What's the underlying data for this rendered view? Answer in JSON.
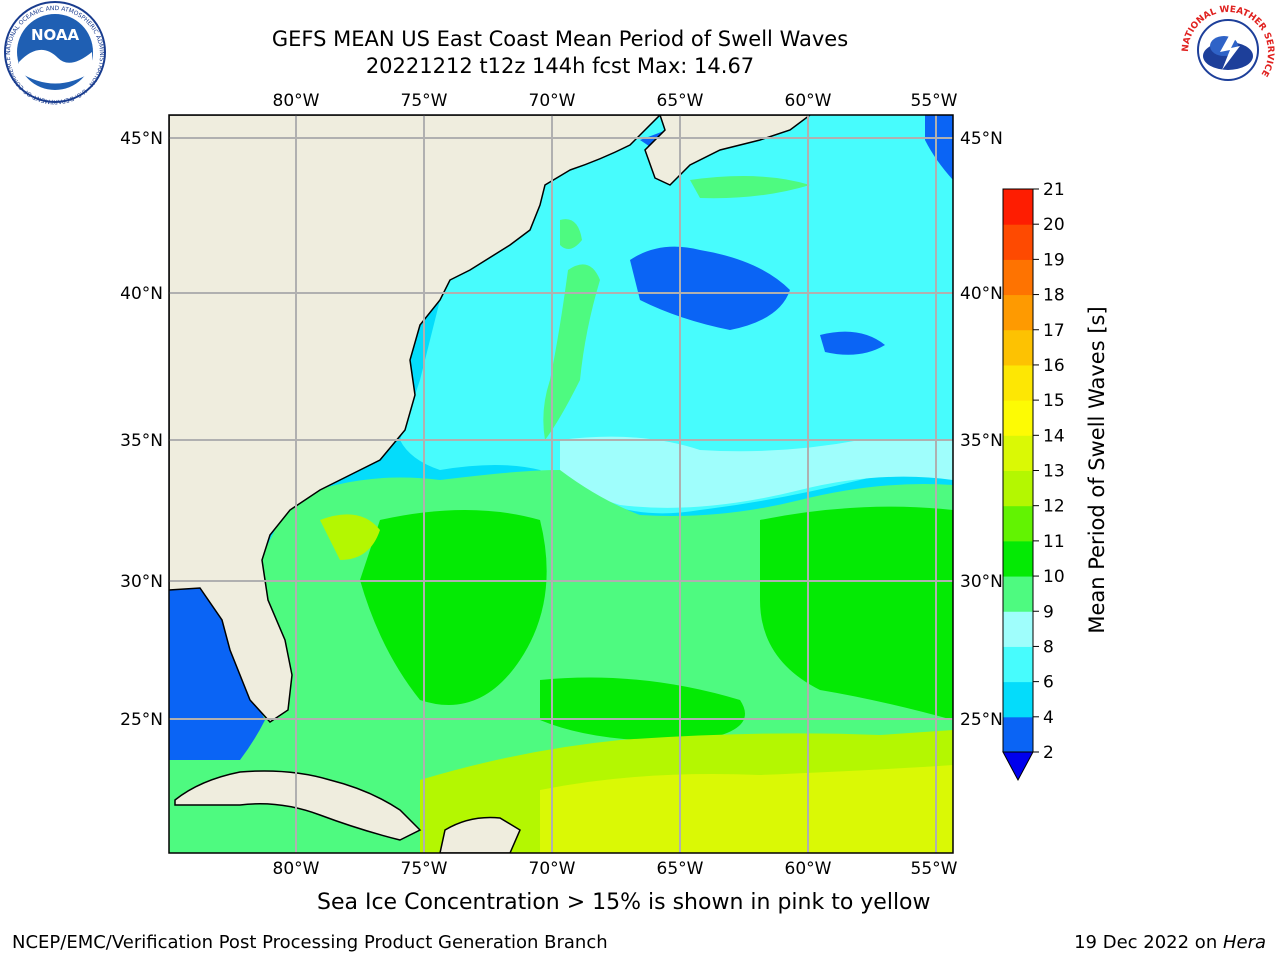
{
  "title": {
    "line1": "GEFS MEAN US East Coast Mean Period of Swell Waves",
    "line2": "20221212 t12z 144h fcst   Max: 14.67"
  },
  "map": {
    "lon_labels": [
      "80°W",
      "75°W",
      "70°W",
      "65°W",
      "60°W",
      "55°W"
    ],
    "lat_labels": [
      "45°N",
      "40°N",
      "35°N",
      "30°N",
      "25°N"
    ],
    "land_color": "#efedde",
    "grid_color": "#b0b0b0"
  },
  "colorbar": {
    "label": "Mean Period of Swell Waves [s]",
    "ticks": [
      "2",
      "4",
      "6",
      "8",
      "9",
      "10",
      "11",
      "12",
      "13",
      "14",
      "15",
      "16",
      "17",
      "18",
      "19",
      "20",
      "21"
    ],
    "colors": [
      "#0a64f5",
      "#04dcfb",
      "#47fcfd",
      "#9ffefc",
      "#4efa80",
      "#04ea04",
      "#62f302",
      "#b4f701",
      "#daf905",
      "#fdfb04",
      "#fde704",
      "#fdc202",
      "#fe9a01",
      "#fe7301",
      "#fe4a01",
      "#fe1d01"
    ],
    "extend_color": "#0000ee"
  },
  "caption": "Sea Ice Concentration > 15% is shown in pink to yellow",
  "footer": {
    "left": "NCEP/EMC/Verification Post Processing Product Generation Branch",
    "right_date": "19 Dec 2022 on ",
    "right_host": "Hera"
  },
  "logos": {
    "noaa": "NOAA",
    "noaa_ring": "NATIONAL OCEANIC AND ATMOSPHERIC ADMINISTRATION · U.S. DEPARTMENT OF COMMERCE",
    "nws_ring": "NATIONAL WEATHER SERVICE"
  }
}
